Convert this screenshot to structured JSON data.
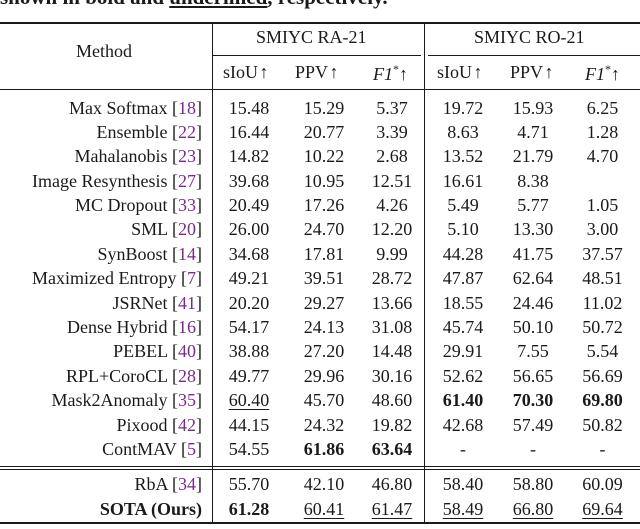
{
  "caption": {
    "prefix": "shown in bold and ",
    "underlined": "underlined",
    "suffix": ", respectively."
  },
  "header": {
    "method": "Method",
    "group_ra": "SMIYC RA-21",
    "group_ro": "SMIYC RO-21",
    "col_siou": "sIoU",
    "col_ppv": "PPV",
    "col_f1": "F1",
    "f1_sup": "*",
    "arrow": "↑"
  },
  "rows": [
    {
      "method": "Max Softmax",
      "cite": "18",
      "values": [
        "15.48",
        "15.29",
        "5.37",
        "19.72",
        "15.93",
        "6.25"
      ],
      "bold": [],
      "underline": []
    },
    {
      "method": "Ensemble",
      "cite": "22",
      "values": [
        "16.44",
        "20.77",
        "3.39",
        "8.63",
        "4.71",
        "1.28"
      ],
      "bold": [],
      "underline": []
    },
    {
      "method": "Mahalanobis",
      "cite": "23",
      "values": [
        "14.82",
        "10.22",
        "2.68",
        "13.52",
        "21.79",
        "4.70"
      ],
      "bold": [],
      "underline": []
    },
    {
      "method": "Image Resynthesis",
      "cite": "27",
      "values": [
        "39.68",
        "10.95",
        "12.51",
        "16.61",
        "8.38",
        ""
      ],
      "bold": [],
      "underline": []
    },
    {
      "method": "MC Dropout",
      "cite": "33",
      "values": [
        "20.49",
        "17.26",
        "4.26",
        "5.49",
        "5.77",
        "1.05"
      ],
      "bold": [],
      "underline": []
    },
    {
      "method": "SML",
      "cite": "20",
      "values": [
        "26.00",
        "24.70",
        "12.20",
        "5.10",
        "13.30",
        "3.00"
      ],
      "bold": [],
      "underline": []
    },
    {
      "method": "SynBoost",
      "cite": "14",
      "values": [
        "34.68",
        "17.81",
        "9.99",
        "44.28",
        "41.75",
        "37.57"
      ],
      "bold": [],
      "underline": []
    },
    {
      "method": "Maximized Entropy",
      "cite": "7",
      "values": [
        "49.21",
        "39.51",
        "28.72",
        "47.87",
        "62.64",
        "48.51"
      ],
      "bold": [],
      "underline": []
    },
    {
      "method": "JSRNet",
      "cite": "41",
      "values": [
        "20.20",
        "29.27",
        "13.66",
        "18.55",
        "24.46",
        "11.02"
      ],
      "bold": [],
      "underline": []
    },
    {
      "method": "Dense Hybrid",
      "cite": "16",
      "values": [
        "54.17",
        "24.13",
        "31.08",
        "45.74",
        "50.10",
        "50.72"
      ],
      "bold": [],
      "underline": []
    },
    {
      "method": "PEBEL",
      "cite": "40",
      "values": [
        "38.88",
        "27.20",
        "14.48",
        "29.91",
        "7.55",
        "5.54"
      ],
      "bold": [],
      "underline": []
    },
    {
      "method": "RPL+CoroCL",
      "cite": "28",
      "values": [
        "49.77",
        "29.96",
        "30.16",
        "52.62",
        "56.65",
        "56.69"
      ],
      "bold": [],
      "underline": []
    },
    {
      "method": "Mask2Anomaly",
      "cite": "35",
      "values": [
        "60.40",
        "45.70",
        "48.60",
        "61.40",
        "70.30",
        "69.80"
      ],
      "bold": [
        3,
        4,
        5
      ],
      "underline": [
        0
      ]
    },
    {
      "method": "Pixood",
      "cite": "42",
      "values": [
        "44.15",
        "24.32",
        "19.82",
        "42.68",
        "57.49",
        "50.82"
      ],
      "bold": [],
      "underline": []
    },
    {
      "method": "ContMAV",
      "cite": "5",
      "values": [
        "54.55",
        "61.86",
        "63.64",
        "-",
        "-",
        "-"
      ],
      "bold": [
        1,
        2
      ],
      "underline": []
    },
    {
      "method": "RbA",
      "cite": "34",
      "values": [
        "55.70",
        "42.10",
        "46.80",
        "58.40",
        "58.80",
        "60.09"
      ],
      "bold": [],
      "underline": []
    },
    {
      "method": "SOTA (Ours)",
      "cite": "",
      "values": [
        "61.28",
        "60.41",
        "61.47",
        "58.49",
        "66.80",
        "69.64"
      ],
      "bold": [
        0
      ],
      "underline": [
        1,
        2,
        3,
        4,
        5
      ],
      "method_bold": true
    }
  ]
}
